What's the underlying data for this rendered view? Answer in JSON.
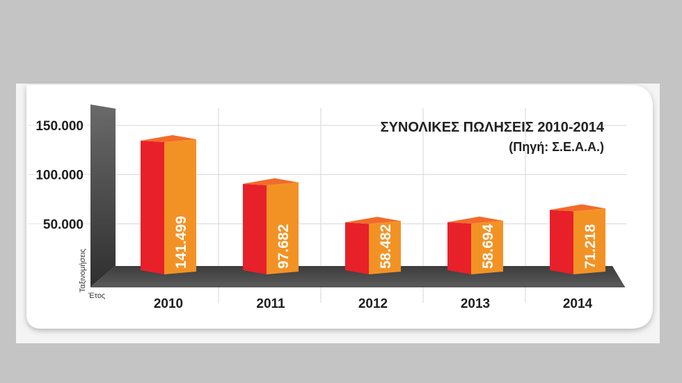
{
  "colors": {
    "background": "#c4c4c4",
    "panel": "#ffffff",
    "bar_front": "#e8202a",
    "bar_side": "#f39224",
    "bar_top": "#f26b2a",
    "floor": "#4a4a4a",
    "wall": "#555555",
    "value_label": "#ffffff"
  },
  "chart_data": {
    "type": "bar",
    "title": "ΣΥΝΟΛΙΚΕΣ ΠΩΛΗΣΕΙΣ 2010-2014",
    "subtitle": "(Πηγή: Σ.Ε.Α.Α.)",
    "xlabel": "Έτος",
    "ylabel": "Ταξινομήσεις",
    "categories": [
      "2010",
      "2011",
      "2012",
      "2013",
      "2014"
    ],
    "values": [
      141499,
      97682,
      58482,
      58694,
      71218
    ],
    "value_labels": [
      "141.499",
      "97.682",
      "58.482",
      "58.694",
      "71.218"
    ],
    "yticks": [
      50000,
      100000,
      150000
    ],
    "ytick_labels": [
      "50.000",
      "100.000",
      "150.000"
    ],
    "ylim": [
      0,
      150000
    ],
    "grid": true,
    "legend": "none",
    "style": "3d"
  }
}
